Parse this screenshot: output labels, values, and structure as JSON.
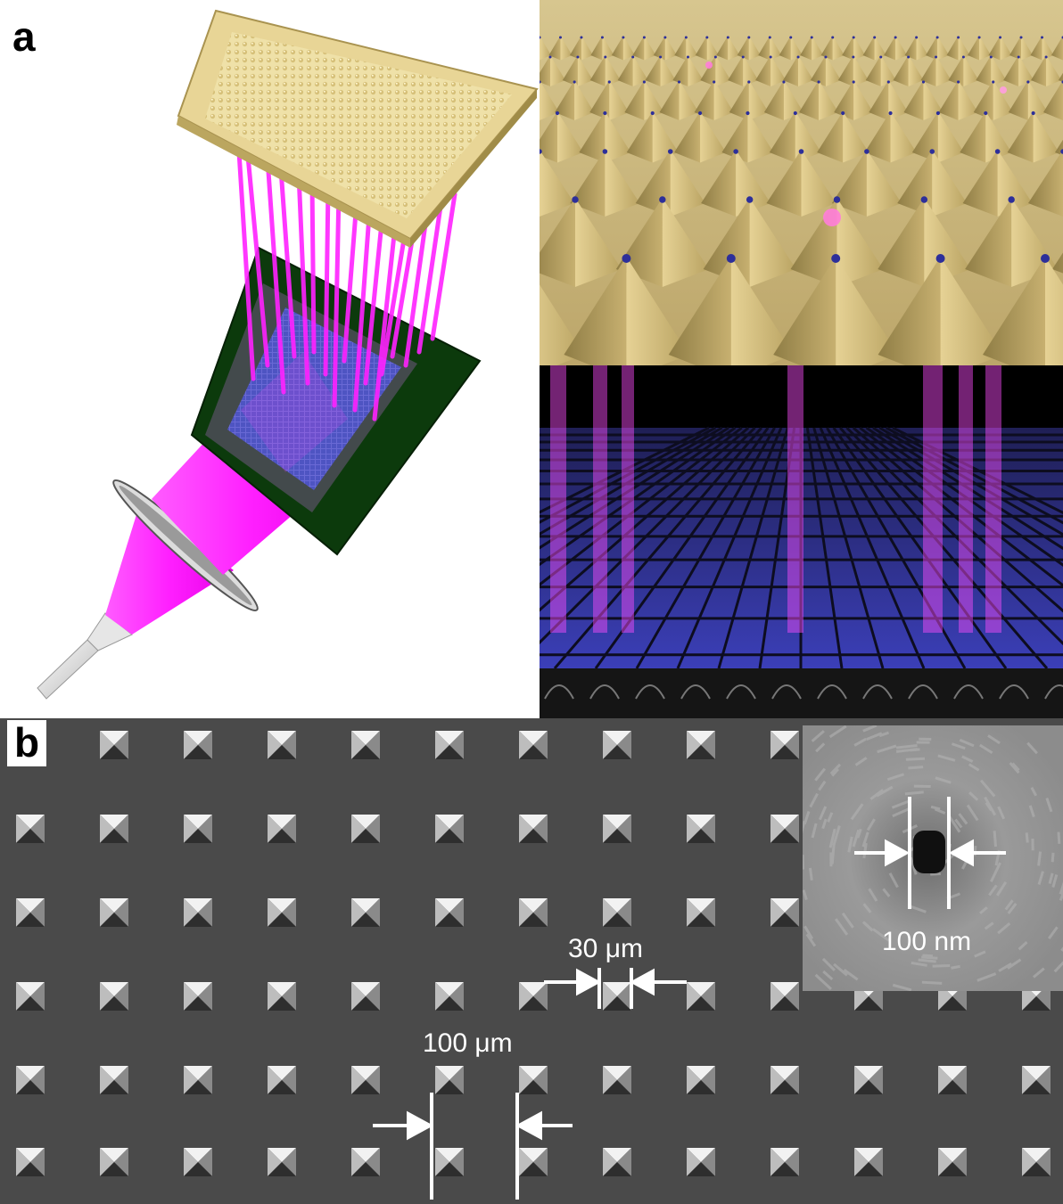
{
  "figure": {
    "panel_a_label": "a",
    "panel_b_label": "b"
  },
  "sem": {
    "pitch_label": "100 μm",
    "pyramid_base_label": "30 μm",
    "inset_aperture_label": "100 nm"
  },
  "colors": {
    "gold": "#d9c58a",
    "magenta_light": "#ff33ff",
    "dark_green_mask": "#0b3a0b",
    "blue_detector": "#3b3fd0",
    "sem_background": "#4b4b4b"
  }
}
